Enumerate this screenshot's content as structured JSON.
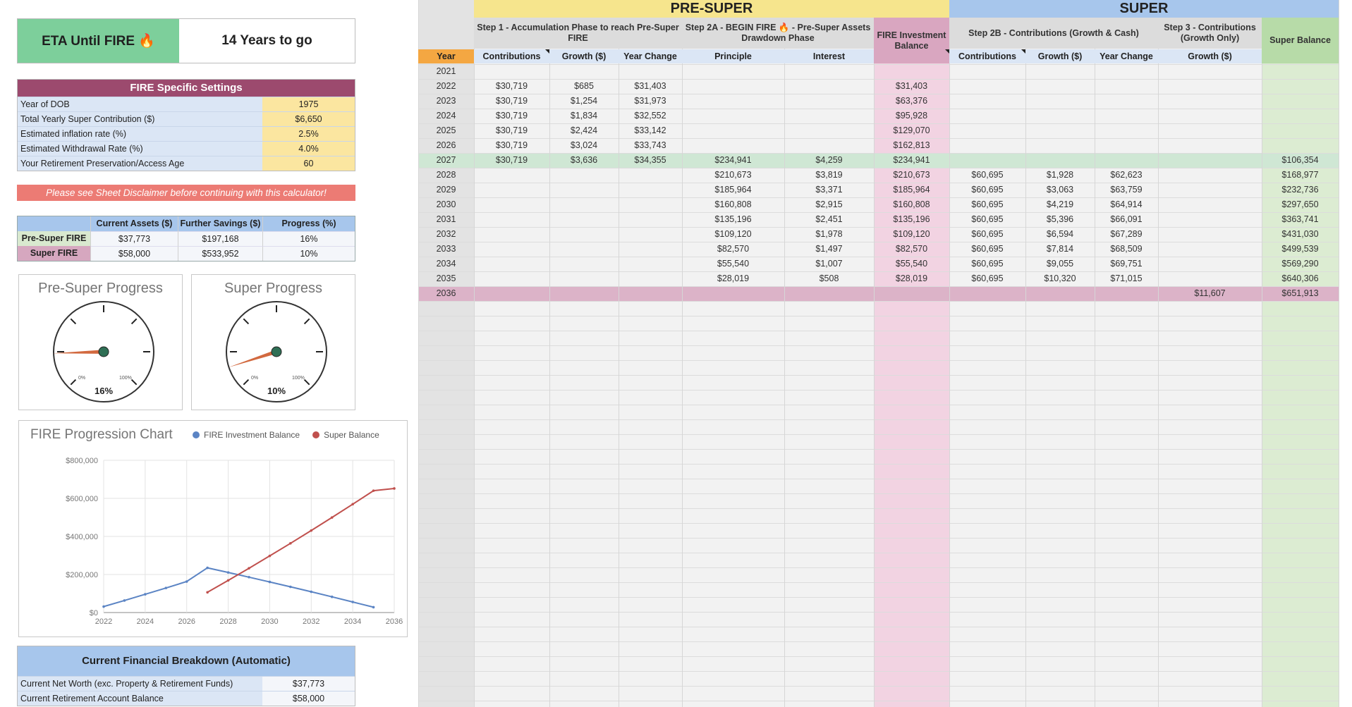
{
  "eta": {
    "label": "ETA Until FIRE 🔥",
    "value": "14 Years to go"
  },
  "settings": {
    "title": "FIRE Specific Settings",
    "rows": [
      {
        "label": "Year of DOB",
        "value": "1975"
      },
      {
        "label": "Total Yearly Super Contribution ($)",
        "value": "$6,650"
      },
      {
        "label": "Estimated inflation rate (%)",
        "value": "2.5%"
      },
      {
        "label": "Estimated Withdrawal Rate (%)",
        "value": "4.0%"
      },
      {
        "label": "Your Retirement Preservation/Access Age",
        "value": "60"
      }
    ]
  },
  "disclaimer": "Please see Sheet Disclaimer before continuing with this calculator!",
  "progress_table": {
    "headers": [
      "",
      "Current Assets ($)",
      "Further Savings ($)",
      "Progress (%)"
    ],
    "rows": [
      {
        "name": "Pre-Super FIRE",
        "assets": "$37,773",
        "savings": "$197,168",
        "progress": "16%"
      },
      {
        "name": "Super FIRE",
        "assets": "$58,000",
        "savings": "$533,952",
        "progress": "10%"
      }
    ]
  },
  "gauges": [
    {
      "title": "Pre-Super Progress",
      "label": "16%",
      "value": 0.16,
      "min_label": "0%",
      "max_label": "100%"
    },
    {
      "title": "Super Progress",
      "label": "10%",
      "value": 0.1,
      "min_label": "0%",
      "max_label": "100%"
    }
  ],
  "chart_data": {
    "type": "line",
    "title": "FIRE Progression Chart",
    "xlabel": "",
    "ylabel": "",
    "x_ticks": [
      "2022",
      "2024",
      "2026",
      "2028",
      "2030",
      "2032",
      "2034",
      "2036"
    ],
    "y_ticks": [
      "$0",
      "$200,000",
      "$400,000",
      "$600,000",
      "$800,000"
    ],
    "xlim": [
      2022,
      2036
    ],
    "ylim": [
      0,
      800000
    ],
    "legend_position": "top",
    "series": [
      {
        "name": "FIRE Investment Balance",
        "color": "#5b84c4",
        "x": [
          2022,
          2023,
          2024,
          2025,
          2026,
          2027,
          2028,
          2029,
          2030,
          2031,
          2032,
          2033,
          2034,
          2035
        ],
        "y": [
          31403,
          63376,
          95928,
          129070,
          162813,
          234941,
          210673,
          185964,
          160808,
          135196,
          109120,
          82570,
          55540,
          28019
        ]
      },
      {
        "name": "Super Balance",
        "color": "#c0504d",
        "x": [
          2027,
          2028,
          2029,
          2030,
          2031,
          2032,
          2033,
          2034,
          2035,
          2036
        ],
        "y": [
          106354,
          168977,
          232736,
          297650,
          363741,
          431030,
          499539,
          569290,
          640306,
          651913
        ]
      }
    ]
  },
  "breakdown": {
    "title": "Current Financial Breakdown (Automatic)",
    "rows": [
      {
        "label": "Current Net Worth (exc. Property & Retirement Funds)",
        "value": "$37,773"
      },
      {
        "label": "Current Retirement Account Balance",
        "value": "$58,000"
      }
    ]
  },
  "grid": {
    "sections": {
      "pre_super": "PRE-SUPER",
      "super": "SUPER"
    },
    "steps": {
      "step1": "Step 1 - Accumulation Phase to reach Pre-Super FIRE",
      "step2a": "Step 2A - BEGIN FIRE 🔥 - Pre-Super Assets Drawdown Phase",
      "fire_balance": "FIRE Investment Balance",
      "step2b": "Step 2B - Contributions (Growth & Cash)",
      "step3": "Step 3 - Contributions (Growth Only)",
      "super_balance": "Super Balance"
    },
    "columns": [
      "Year",
      "Contributions",
      "Growth ($)",
      "Year Change",
      "Principle",
      "Interest",
      "Contributions",
      "Growth ($)",
      "Year Change",
      "Growth ($)"
    ],
    "rows": [
      [
        "2021",
        "",
        "",
        "",
        "",
        "",
        "",
        "",
        "",
        "",
        "",
        "",
        ""
      ],
      [
        "2022",
        "$30,719",
        "$685",
        "$31,403",
        "",
        "",
        "$31,403",
        "",
        "",
        "",
        "",
        ""
      ],
      [
        "2023",
        "$30,719",
        "$1,254",
        "$31,973",
        "",
        "",
        "$63,376",
        "",
        "",
        "",
        "",
        ""
      ],
      [
        "2024",
        "$30,719",
        "$1,834",
        "$32,552",
        "",
        "",
        "$95,928",
        "",
        "",
        "",
        "",
        ""
      ],
      [
        "2025",
        "$30,719",
        "$2,424",
        "$33,142",
        "",
        "",
        "$129,070",
        "",
        "",
        "",
        "",
        ""
      ],
      [
        "2026",
        "$30,719",
        "$3,024",
        "$33,743",
        "",
        "",
        "$162,813",
        "",
        "",
        "",
        "",
        ""
      ],
      [
        "2027",
        "$30,719",
        "$3,636",
        "$34,355",
        "$234,941",
        "$4,259",
        "$234,941",
        "",
        "",
        "",
        "",
        "$106,354"
      ],
      [
        "2028",
        "",
        "",
        "",
        "$210,673",
        "$3,819",
        "$210,673",
        "$60,695",
        "$1,928",
        "$62,623",
        "",
        "$168,977"
      ],
      [
        "2029",
        "",
        "",
        "",
        "$185,964",
        "$3,371",
        "$185,964",
        "$60,695",
        "$3,063",
        "$63,759",
        "",
        "$232,736"
      ],
      [
        "2030",
        "",
        "",
        "",
        "$160,808",
        "$2,915",
        "$160,808",
        "$60,695",
        "$4,219",
        "$64,914",
        "",
        "$297,650"
      ],
      [
        "2031",
        "",
        "",
        "",
        "$135,196",
        "$2,451",
        "$135,196",
        "$60,695",
        "$5,396",
        "$66,091",
        "",
        "$363,741"
      ],
      [
        "2032",
        "",
        "",
        "",
        "$109,120",
        "$1,978",
        "$109,120",
        "$60,695",
        "$6,594",
        "$67,289",
        "",
        "$431,030"
      ],
      [
        "2033",
        "",
        "",
        "",
        "$82,570",
        "$1,497",
        "$82,570",
        "$60,695",
        "$7,814",
        "$68,509",
        "",
        "$499,539"
      ],
      [
        "2034",
        "",
        "",
        "",
        "$55,540",
        "$1,007",
        "$55,540",
        "$60,695",
        "$9,055",
        "$69,751",
        "",
        "$569,290"
      ],
      [
        "2035",
        "",
        "",
        "",
        "$28,019",
        "$508",
        "$28,019",
        "$60,695",
        "$10,320",
        "$71,015",
        "",
        "$640,306"
      ],
      [
        "2036",
        "",
        "",
        "",
        "",
        "",
        "",
        "",
        "",
        "",
        "$11,607",
        "$651,913"
      ]
    ],
    "colors": {
      "pre_super_head": "#f6e58d",
      "super_head": "#a7c6ec",
      "year_head": "#f4a742",
      "fire_balance_col": "#f2d3e2",
      "super_balance_col": "#dcecd2",
      "row_2027": "#cfe7d4",
      "row_2036": "#dcb3c8"
    }
  }
}
